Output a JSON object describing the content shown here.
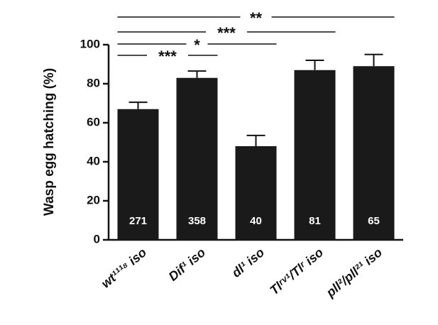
{
  "chart_data": {
    "type": "bar",
    "y_label": "Wasp egg hatching (%)",
    "categories": [
      "wt¹¹¹⁸ iso",
      "Dif¹ iso",
      "dl¹ iso",
      "Tlʳᵛ¹/Tlʳ iso",
      "pll²/pll²¹ iso"
    ],
    "values": [
      67,
      83,
      48,
      87,
      89
    ],
    "errors": [
      3.5,
      3.5,
      5.5,
      5,
      6
    ],
    "n_labels": [
      "271",
      "358",
      "40",
      "81",
      "65"
    ],
    "color": "#1a1a1a",
    "ylim": [
      0,
      100
    ],
    "yticks": [
      0,
      20,
      40,
      60,
      80,
      100
    ],
    "significance": [
      {
        "text": "***",
        "from": 0,
        "to": 1
      },
      {
        "text": "*",
        "from": 0,
        "to": 2
      },
      {
        "text": "***",
        "from": 0,
        "to": 3
      },
      {
        "text": "**",
        "from": 0,
        "to": 4
      }
    ]
  }
}
